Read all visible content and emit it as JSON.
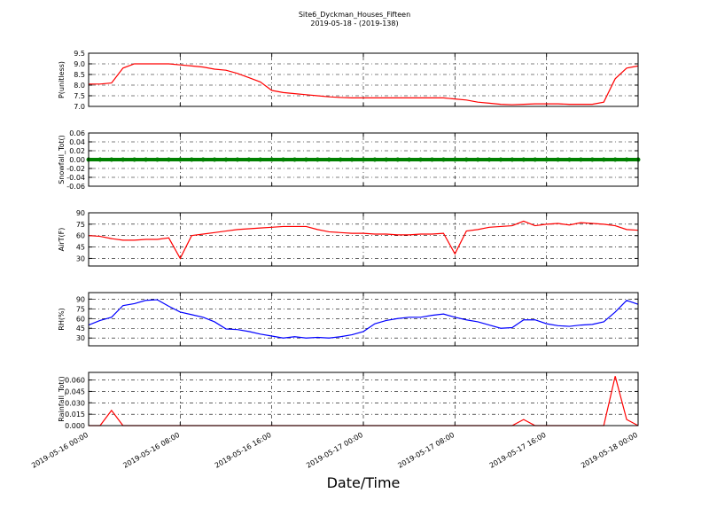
{
  "title": "Site6_Dyckman_Houses_Fifteen",
  "subtitle": "2019-05-18 - (2019-138)",
  "xlabel": "Date/Time",
  "grid": true,
  "x": [
    "2019-05-16 00:00",
    "2019-05-16 01:00",
    "2019-05-16 02:00",
    "2019-05-16 03:00",
    "2019-05-16 04:00",
    "2019-05-16 05:00",
    "2019-05-16 06:00",
    "2019-05-16 07:00",
    "2019-05-16 08:00",
    "2019-05-16 09:00",
    "2019-05-16 10:00",
    "2019-05-16 11:00",
    "2019-05-16 12:00",
    "2019-05-16 13:00",
    "2019-05-16 14:00",
    "2019-05-16 15:00",
    "2019-05-16 16:00",
    "2019-05-16 17:00",
    "2019-05-16 18:00",
    "2019-05-16 19:00",
    "2019-05-16 20:00",
    "2019-05-16 21:00",
    "2019-05-16 22:00",
    "2019-05-16 23:00",
    "2019-05-17 00:00",
    "2019-05-17 01:00",
    "2019-05-17 02:00",
    "2019-05-17 03:00",
    "2019-05-17 04:00",
    "2019-05-17 05:00",
    "2019-05-17 06:00",
    "2019-05-17 07:00",
    "2019-05-17 08:00",
    "2019-05-17 09:00",
    "2019-05-17 10:00",
    "2019-05-17 11:00",
    "2019-05-17 12:00",
    "2019-05-17 13:00",
    "2019-05-17 14:00",
    "2019-05-17 15:00",
    "2019-05-17 16:00",
    "2019-05-17 17:00",
    "2019-05-17 18:00",
    "2019-05-17 19:00",
    "2019-05-17 20:00",
    "2019-05-17 21:00",
    "2019-05-17 22:00",
    "2019-05-17 23:00",
    "2019-05-18 00:00"
  ],
  "xlim": [
    "2019-05-16 00:00",
    "2019-05-18 00:00"
  ],
  "xticks": [
    "2019-05-16 00:00",
    "2019-05-16 08:00",
    "2019-05-16 16:00",
    "2019-05-17 00:00",
    "2019-05-17 08:00",
    "2019-05-17 16:00",
    "2019-05-18 00:00"
  ],
  "chart_data": [
    {
      "type": "line",
      "ylabel": "P(unitless)",
      "color": "#ff0000",
      "ylim": [
        7,
        9.5
      ],
      "yticks": [
        {
          "value": 7,
          "label": "7.0"
        },
        7.5,
        {
          "value": 8,
          "label": "8.0"
        },
        8.5,
        {
          "value": 9,
          "label": "9.0"
        },
        9.5
      ],
      "values": [
        8.05,
        8.05,
        8.1,
        8.8,
        9.0,
        9.0,
        9.0,
        9.0,
        8.95,
        8.9,
        8.85,
        8.75,
        8.7,
        8.55,
        8.35,
        8.15,
        7.75,
        7.65,
        7.6,
        7.55,
        7.5,
        7.45,
        7.42,
        7.4,
        7.4,
        7.4,
        7.4,
        7.4,
        7.4,
        7.4,
        7.4,
        7.4,
        7.35,
        7.3,
        7.2,
        7.15,
        7.1,
        7.08,
        7.1,
        7.12,
        7.12,
        7.12,
        7.1,
        7.1,
        7.1,
        7.2,
        8.3,
        8.8,
        8.9
      ]
    },
    {
      "type": "line",
      "ylabel": "Snowfall_Tot()",
      "color": "#008000",
      "markers": true,
      "ylim": [
        -0.06,
        0.06
      ],
      "yticks": [
        -0.06,
        -0.04,
        -0.02,
        {
          "value": 0,
          "label": "0.00"
        },
        0.02,
        0.04,
        0.06
      ],
      "values": [
        0,
        0,
        0,
        0,
        0,
        0,
        0,
        0,
        0,
        0,
        0,
        0,
        0,
        0,
        0,
        0,
        0,
        0,
        0,
        0,
        0,
        0,
        0,
        0,
        0,
        0,
        0,
        0,
        0,
        0,
        0,
        0,
        0,
        0,
        0,
        0,
        0,
        0,
        0,
        0,
        0,
        0,
        0,
        0,
        0,
        0,
        0,
        0,
        0
      ]
    },
    {
      "type": "line",
      "ylabel": "AirT(F)",
      "color": "#ff0000",
      "ylim": [
        20,
        90
      ],
      "yticks": [
        30,
        45,
        60,
        75,
        90
      ],
      "values": [
        60,
        59,
        56,
        54,
        54,
        55,
        55,
        57,
        30,
        60,
        62,
        64,
        66,
        68,
        69,
        70,
        71,
        72,
        72,
        72,
        68,
        65,
        64,
        63,
        63,
        62,
        62,
        61,
        61,
        62,
        62,
        63,
        36,
        66,
        68,
        71,
        72,
        73,
        79,
        73,
        75,
        76,
        74,
        77,
        76,
        75,
        73,
        68,
        67
      ]
    },
    {
      "type": "line",
      "ylabel": "RH(%)",
      "color": "#0000ff",
      "ylim": [
        18,
        100
      ],
      "yticks": [
        30,
        45,
        60,
        75,
        90
      ],
      "values": [
        50,
        57,
        62,
        80,
        83,
        88,
        89,
        79,
        70,
        66,
        62,
        55,
        44,
        43,
        40,
        36,
        33,
        30,
        32,
        30,
        31,
        30,
        32,
        35,
        40,
        52,
        57,
        60,
        62,
        62,
        65,
        67,
        62,
        58,
        55,
        50,
        45,
        46,
        58,
        58,
        52,
        49,
        48,
        50,
        51,
        55,
        70,
        88,
        82
      ]
    },
    {
      "type": "line",
      "ylabel": "Rainfall_Tot()",
      "color": "#ff0000",
      "ylim": [
        0,
        0.07
      ],
      "yticks": [
        {
          "value": 0,
          "label": "0.000"
        },
        0.015,
        {
          "value": 0.03,
          "label": "0.030"
        },
        0.045,
        {
          "value": 0.06,
          "label": "0.060"
        }
      ],
      "values": [
        0,
        0,
        0.02,
        0,
        0,
        0,
        0,
        0,
        0,
        0,
        0,
        0,
        0,
        0,
        0,
        0,
        0,
        0,
        0,
        0,
        0,
        0,
        0,
        0,
        0,
        0,
        0,
        0,
        0,
        0,
        0,
        0,
        0,
        0,
        0,
        0,
        0,
        0,
        0.008,
        0,
        0,
        0,
        0,
        0,
        0,
        0,
        0.065,
        0.008,
        0
      ]
    }
  ]
}
